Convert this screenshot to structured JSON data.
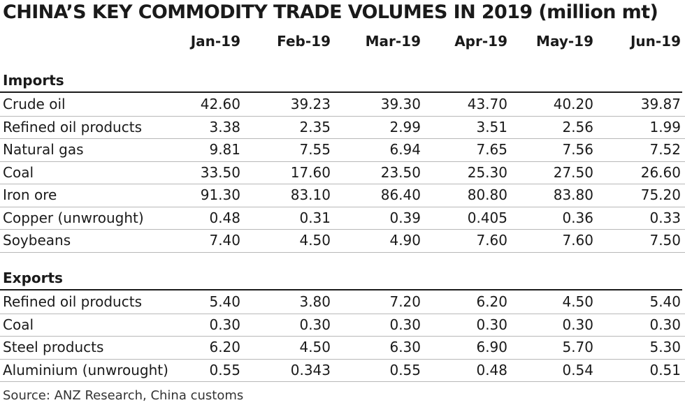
{
  "chart_data": {
    "type": "table",
    "title": "CHINA’S KEY COMMODITY TRADE VOLUMES IN 2019 (million mt)",
    "columns": [
      "Jan-19",
      "Feb-19",
      "Mar-19",
      "Apr-19",
      "May-19",
      "Jun-19"
    ],
    "sections": [
      {
        "name": "Imports",
        "rows": [
          {
            "label": "Crude oil",
            "values": [
              "42.60",
              "39.23",
              "39.30",
              "43.70",
              "40.20",
              "39.87"
            ]
          },
          {
            "label": "Refined oil products",
            "values": [
              "3.38",
              "2.35",
              "2.99",
              "3.51",
              "2.56",
              "1.99"
            ]
          },
          {
            "label": "Natural gas",
            "values": [
              "9.81",
              "7.55",
              "6.94",
              "7.65",
              "7.56",
              "7.52"
            ]
          },
          {
            "label": "Coal",
            "values": [
              "33.50",
              "17.60",
              "23.50",
              "25.30",
              "27.50",
              "26.60"
            ]
          },
          {
            "label": "Iron ore",
            "values": [
              "91.30",
              "83.10",
              "86.40",
              "80.80",
              "83.80",
              "75.20"
            ]
          },
          {
            "label": "Copper (unwrought)",
            "values": [
              "0.48",
              "0.31",
              "0.39",
              "0.405",
              "0.36",
              "0.33"
            ]
          },
          {
            "label": "Soybeans",
            "values": [
              "7.40",
              "4.50",
              "4.90",
              "7.60",
              "7.60",
              "7.50"
            ]
          }
        ]
      },
      {
        "name": "Exports",
        "rows": [
          {
            "label": "Refined oil products",
            "values": [
              "5.40",
              "3.80",
              "7.20",
              "6.20",
              "4.50",
              "5.40"
            ]
          },
          {
            "label": "Coal",
            "values": [
              "0.30",
              "0.30",
              "0.30",
              "0.30",
              "0.30",
              "0.30"
            ]
          },
          {
            "label": "Steel products",
            "values": [
              "6.20",
              "4.50",
              "6.30",
              "6.90",
              "5.70",
              "5.30"
            ]
          },
          {
            "label": "Aluminium (unwrought)",
            "values": [
              "0.55",
              "0.343",
              "0.55",
              "0.48",
              "0.54",
              "0.51"
            ]
          }
        ]
      }
    ],
    "source": "Source: ANZ  Research, China customs"
  }
}
